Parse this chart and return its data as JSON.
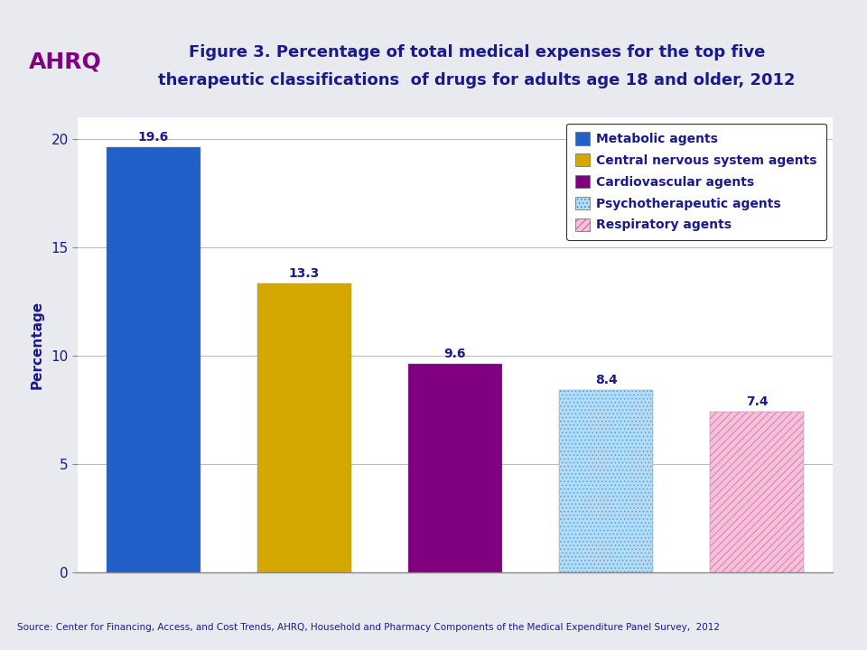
{
  "categories": [
    "Metabolic agents",
    "Central nervous system agents",
    "Cardiovascular agents",
    "Psychotherapeutic agents",
    "Respiratory agents"
  ],
  "values": [
    19.6,
    13.3,
    9.6,
    8.4,
    7.4
  ],
  "bar_colors": [
    "#2060C8",
    "#D4A800",
    "#800080",
    "#AADDFF",
    "#FFBBDD"
  ],
  "title_line1": "Figure 3. Percentage of total medical expenses for the top five",
  "title_line2": "therapeutic classifications  of drugs for adults age 18 and older, 2012",
  "ylabel": "Percentage",
  "ylim": [
    0,
    21
  ],
  "yticks": [
    0,
    5,
    10,
    15,
    20
  ],
  "source_text": "Source: Center for Financing, Access, and Cost Trends, AHRQ, Household and Pharmacy Components of the Medical Expenditure Panel Survey,  2012",
  "title_color": "#1A1A8C",
  "label_color": "#1A1A8C",
  "ylabel_color": "#1A1A8C",
  "bg_header_color": "#D0D4E0",
  "bg_body_color": "#E8EAF0",
  "plot_bg_color": "#FFFFFF",
  "hatches": [
    null,
    null,
    null,
    "....",
    "////"
  ],
  "legend_hatch_facecolors": [
    "#2060C8",
    "#D4A800",
    "#800080",
    "#AADDFF",
    "#FFBBDD"
  ]
}
